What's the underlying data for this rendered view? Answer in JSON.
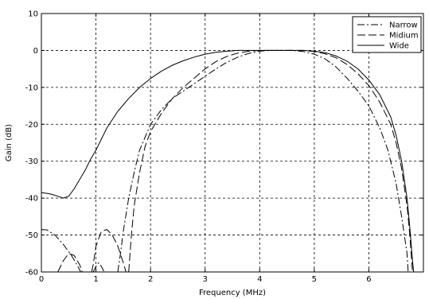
{
  "chart_data": {
    "type": "line",
    "title": "",
    "xlabel": "Frequency (MHz)",
    "ylabel": "Gain (dB)",
    "xlim": [
      0,
      7
    ],
    "ylim": [
      -60,
      10
    ],
    "xticks": [
      0,
      1,
      2,
      3,
      4,
      5,
      6
    ],
    "yticks": [
      10,
      0,
      -10,
      -20,
      -30,
      -40,
      -50,
      -60
    ],
    "grid": true,
    "legend_position": "top-right",
    "series": [
      {
        "name": "Narrow",
        "linestyle": "dash-dot",
        "color": "#000000",
        "segments": [
          [
            [
              0,
              -48.5
            ],
            [
              0.1,
              -48.6
            ],
            [
              0.25,
              -50
            ],
            [
              0.4,
              -52.5
            ],
            [
              0.55,
              -55.5
            ],
            [
              0.65,
              -58
            ],
            [
              0.72,
              -60
            ]
          ],
          [
            [
              0.95,
              -60
            ],
            [
              1.0,
              -58.5
            ],
            [
              1.05,
              -57.5
            ],
            [
              1.1,
              -58.5
            ],
            [
              1.15,
              -60
            ]
          ],
          [
            [
              1.4,
              -60
            ],
            [
              1.45,
              -55
            ],
            [
              1.5,
              -49
            ],
            [
              1.6,
              -40
            ],
            [
              1.7,
              -33
            ],
            [
              1.8,
              -27
            ],
            [
              2.0,
              -20
            ],
            [
              2.2,
              -16
            ],
            [
              2.4,
              -13
            ],
            [
              2.6,
              -11
            ],
            [
              2.8,
              -9
            ],
            [
              3.0,
              -7
            ],
            [
              3.2,
              -5
            ],
            [
              3.4,
              -3.2
            ],
            [
              3.6,
              -1.8
            ],
            [
              3.8,
              -0.8
            ],
            [
              4.0,
              -0.2
            ],
            [
              4.2,
              0
            ],
            [
              4.4,
              0
            ],
            [
              4.6,
              0
            ],
            [
              4.8,
              -0.3
            ],
            [
              5.0,
              -1
            ],
            [
              5.2,
              -2.3
            ],
            [
              5.4,
              -4.5
            ],
            [
              5.6,
              -7.5
            ],
            [
              5.8,
              -11
            ],
            [
              6.0,
              -15
            ],
            [
              6.2,
              -21
            ],
            [
              6.35,
              -27
            ],
            [
              6.5,
              -36
            ],
            [
              6.6,
              -45
            ],
            [
              6.7,
              -55
            ],
            [
              6.72,
              -60
            ]
          ]
        ]
      },
      {
        "name": "Midium",
        "linestyle": "dashed",
        "color": "#000000",
        "segments": [
          [
            [
              0.3,
              -60
            ],
            [
              0.4,
              -57
            ],
            [
              0.5,
              -55
            ],
            [
              0.6,
              -55.5
            ],
            [
              0.7,
              -58
            ],
            [
              0.75,
              -60
            ]
          ],
          [
            [
              0.92,
              -60
            ],
            [
              0.95,
              -58
            ],
            [
              1.0,
              -53
            ],
            [
              1.1,
              -49
            ],
            [
              1.2,
              -48.5
            ],
            [
              1.3,
              -50
            ],
            [
              1.4,
              -53
            ],
            [
              1.5,
              -57.5
            ],
            [
              1.55,
              -60
            ]
          ],
          [
            [
              1.6,
              -60
            ],
            [
              1.65,
              -50
            ],
            [
              1.7,
              -42
            ],
            [
              1.8,
              -33
            ],
            [
              1.9,
              -26
            ],
            [
              2.0,
              -22
            ],
            [
              2.2,
              -17
            ],
            [
              2.4,
              -13
            ],
            [
              2.6,
              -10
            ],
            [
              2.8,
              -7.5
            ],
            [
              3.0,
              -5
            ],
            [
              3.2,
              -3
            ],
            [
              3.4,
              -1.6
            ],
            [
              3.6,
              -0.7
            ],
            [
              3.8,
              -0.2
            ],
            [
              4.0,
              0
            ],
            [
              4.4,
              0
            ],
            [
              4.8,
              0
            ],
            [
              5.0,
              -0.3
            ],
            [
              5.2,
              -0.9
            ],
            [
              5.4,
              -2
            ],
            [
              5.6,
              -3.8
            ],
            [
              5.8,
              -6.3
            ],
            [
              6.0,
              -9.5
            ],
            [
              6.2,
              -14
            ],
            [
              6.4,
              -20
            ],
            [
              6.5,
              -25
            ],
            [
              6.6,
              -32
            ],
            [
              6.7,
              -42
            ],
            [
              6.75,
              -50
            ],
            [
              6.8,
              -60
            ]
          ]
        ]
      },
      {
        "name": "Wide",
        "linestyle": "solid",
        "color": "#000000",
        "segments": [
          [
            [
              0,
              -38.5
            ],
            [
              0.1,
              -38.7
            ],
            [
              0.2,
              -39
            ],
            [
              0.3,
              -39.5
            ],
            [
              0.4,
              -40
            ],
            [
              0.5,
              -39.5
            ],
            [
              0.6,
              -37.5
            ],
            [
              0.7,
              -35
            ],
            [
              0.8,
              -32.5
            ],
            [
              0.9,
              -29.5
            ],
            [
              1.0,
              -27
            ],
            [
              1.1,
              -24
            ],
            [
              1.2,
              -21
            ],
            [
              1.4,
              -16.5
            ],
            [
              1.6,
              -13
            ],
            [
              1.8,
              -10
            ],
            [
              2.0,
              -7.6
            ],
            [
              2.2,
              -5.6
            ],
            [
              2.4,
              -4
            ],
            [
              2.6,
              -2.8
            ],
            [
              2.8,
              -1.8
            ],
            [
              3.0,
              -1
            ],
            [
              3.2,
              -0.5
            ],
            [
              3.4,
              -0.2
            ],
            [
              3.6,
              0
            ],
            [
              4.0,
              0
            ],
            [
              4.4,
              0
            ],
            [
              4.8,
              0
            ],
            [
              5.0,
              -0.2
            ],
            [
              5.2,
              -0.6
            ],
            [
              5.4,
              -1.5
            ],
            [
              5.6,
              -2.9
            ],
            [
              5.8,
              -5
            ],
            [
              6.0,
              -8
            ],
            [
              6.2,
              -12
            ],
            [
              6.4,
              -18
            ],
            [
              6.5,
              -23
            ],
            [
              6.6,
              -30
            ],
            [
              6.7,
              -40
            ],
            [
              6.75,
              -48
            ],
            [
              6.8,
              -57
            ],
            [
              6.82,
              -60
            ]
          ]
        ]
      }
    ]
  }
}
